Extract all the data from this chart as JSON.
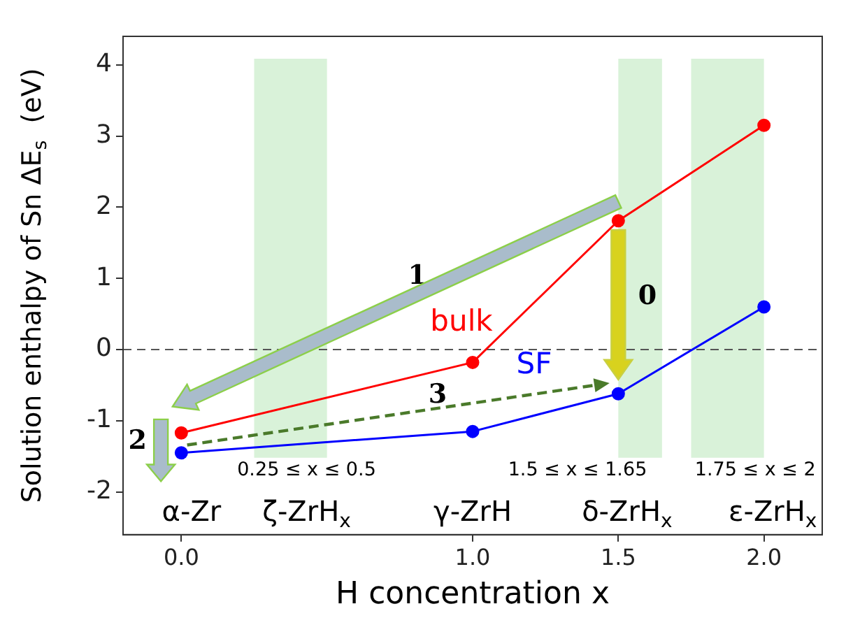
{
  "chart_data": {
    "type": "line",
    "xlabel": "H concentration x",
    "ylabel": "Solution enthalpy of Sn ΔE$_{s}$  (eV)",
    "series": [
      {
        "name": "bulk",
        "color": "#ff0000",
        "x": [
          0,
          1,
          1.5,
          2
        ],
        "values": [
          -1.17,
          -0.18,
          1.81,
          3.15
        ]
      },
      {
        "name": "SF",
        "color": "#0000ff",
        "x": [
          0,
          1,
          1.5,
          2
        ],
        "values": [
          -1.45,
          -1.15,
          -0.62,
          0.6
        ]
      }
    ],
    "marker": "circle",
    "line_style": "solid",
    "grid": false,
    "legend": false,
    "xlim": [
      -0.2,
      2.2
    ],
    "xticks": [
      {
        "value": 0,
        "label": "0.0"
      },
      {
        "value": 1,
        "label": "1.0"
      },
      {
        "value": 1.5,
        "label": "1.5"
      },
      {
        "value": 2,
        "label": "2.0"
      }
    ],
    "ylim": [
      -2.6,
      4.4
    ],
    "yticks": [
      -2,
      -1,
      0,
      1,
      2,
      3,
      4
    ],
    "ref_lines": [
      {
        "axis": "y",
        "value": 0,
        "color": "#555555",
        "line_style": "dashed"
      }
    ],
    "bands": [
      {
        "axis": "x",
        "from": 0.25,
        "to": 0.5,
        "color": "#d9f2d9"
      },
      {
        "axis": "x",
        "from": 1.5,
        "to": 1.65,
        "color": "#d9f2d9"
      },
      {
        "axis": "x",
        "from": 1.75,
        "to": 2,
        "color": "#d9f2d9"
      }
    ],
    "annotations": [
      "α-Zr",
      "ζ-ZrH$_{x}$",
      "γ-ZrH",
      "δ-ZrH$_{x}$",
      "ε-ZrH$_{x}$",
      "0.25 ≤ x ≤ 0.5",
      "1.5 ≤ x ≤ 1.65",
      "1.75 ≤ x ≤ 2",
      "1",
      "0",
      "2",
      "3"
    ]
  }
}
